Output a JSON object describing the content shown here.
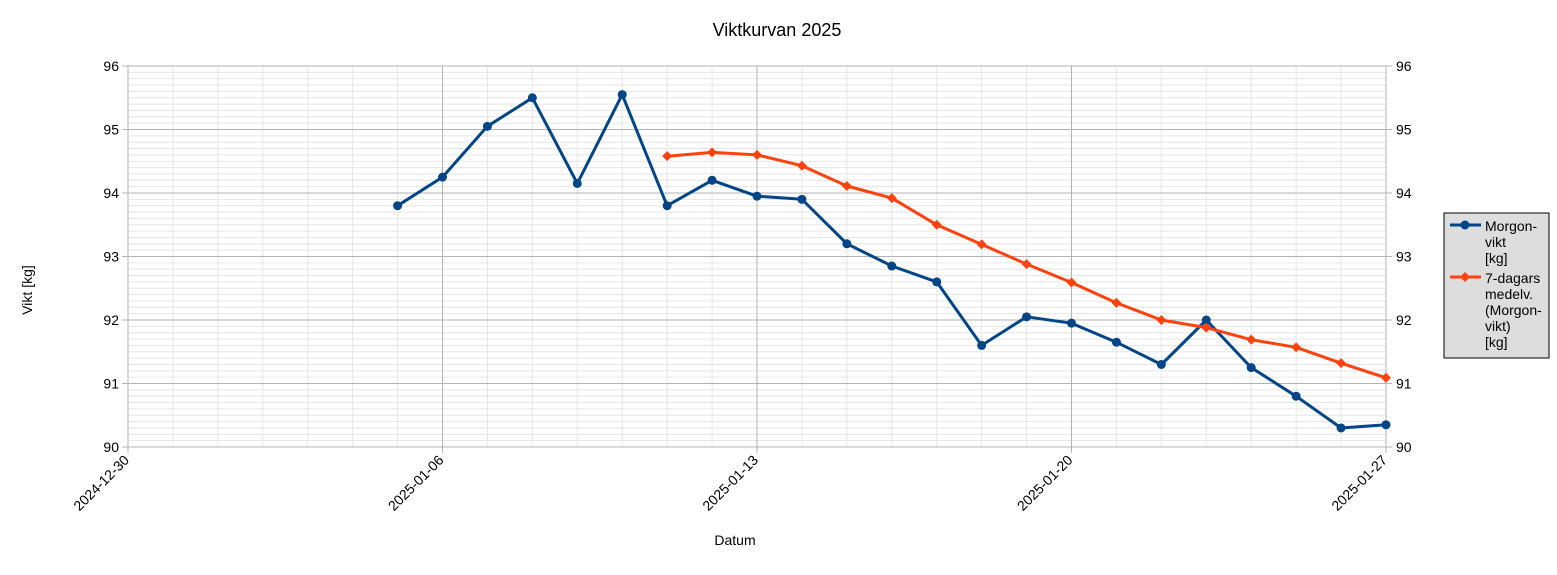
{
  "chart_data": {
    "type": "line",
    "title": "Viktkurvan 2025",
    "xlabel": "Datum",
    "ylabel": "Vikt [kg]",
    "x_ticks": [
      "2024-12-30",
      "2025-01-06",
      "2025-01-13",
      "2025-01-20",
      "2025-01-27"
    ],
    "xlim": [
      "2024-12-30",
      "2025-01-27"
    ],
    "ylim": [
      90,
      96
    ],
    "y_ticks": [
      "90",
      "91",
      "92",
      "93",
      "94",
      "95",
      "96"
    ],
    "y_minor_step": 0.1,
    "grid": true,
    "secondary_y_axis": true,
    "legend_position": "right",
    "series": [
      {
        "name": [
          "Morgon-",
          "vikt",
          "[kg]"
        ],
        "color": "#004586",
        "marker": "circle",
        "points": [
          {
            "x": "2025-01-05",
            "y": 93.8
          },
          {
            "x": "2025-01-06",
            "y": 94.25
          },
          {
            "x": "2025-01-07",
            "y": 95.05
          },
          {
            "x": "2025-01-08",
            "y": 95.5
          },
          {
            "x": "2025-01-09",
            "y": 94.15
          },
          {
            "x": "2025-01-10",
            "y": 95.55
          },
          {
            "x": "2025-01-11",
            "y": 93.8
          },
          {
            "x": "2025-01-12",
            "y": 94.2
          },
          {
            "x": "2025-01-13",
            "y": 93.95
          },
          {
            "x": "2025-01-14",
            "y": 93.9
          },
          {
            "x": "2025-01-15",
            "y": 93.2
          },
          {
            "x": "2025-01-16",
            "y": 92.85
          },
          {
            "x": "2025-01-17",
            "y": 92.6
          },
          {
            "x": "2025-01-18",
            "y": 91.6
          },
          {
            "x": "2025-01-19",
            "y": 92.05
          },
          {
            "x": "2025-01-20",
            "y": 91.95
          },
          {
            "x": "2025-01-21",
            "y": 91.65
          },
          {
            "x": "2025-01-22",
            "y": 91.3
          },
          {
            "x": "2025-01-23",
            "y": 92.0
          },
          {
            "x": "2025-01-24",
            "y": 91.25
          },
          {
            "x": "2025-01-25",
            "y": 90.8
          },
          {
            "x": "2025-01-26",
            "y": 90.3
          },
          {
            "x": "2025-01-27",
            "y": 90.35
          }
        ]
      },
      {
        "name": [
          "7-dagars",
          "medelv.",
          "(Morgon-",
          "vikt)",
          "[kg]"
        ],
        "color": "#ff420e",
        "marker": "diamond",
        "points": [
          {
            "x": "2025-01-11",
            "y": 94.58
          },
          {
            "x": "2025-01-12",
            "y": 94.64
          },
          {
            "x": "2025-01-13",
            "y": 94.6
          },
          {
            "x": "2025-01-14",
            "y": 94.43
          },
          {
            "x": "2025-01-15",
            "y": 94.11
          },
          {
            "x": "2025-01-16",
            "y": 93.92
          },
          {
            "x": "2025-01-17",
            "y": 93.5
          },
          {
            "x": "2025-01-18",
            "y": 93.19
          },
          {
            "x": "2025-01-19",
            "y": 92.88
          },
          {
            "x": "2025-01-20",
            "y": 92.59
          },
          {
            "x": "2025-01-21",
            "y": 92.27
          },
          {
            "x": "2025-01-22",
            "y": 92.0
          },
          {
            "x": "2025-01-23",
            "y": 91.88
          },
          {
            "x": "2025-01-24",
            "y": 91.69
          },
          {
            "x": "2025-01-25",
            "y": 91.57
          },
          {
            "x": "2025-01-26",
            "y": 91.32
          },
          {
            "x": "2025-01-27",
            "y": 91.09
          }
        ]
      }
    ]
  }
}
